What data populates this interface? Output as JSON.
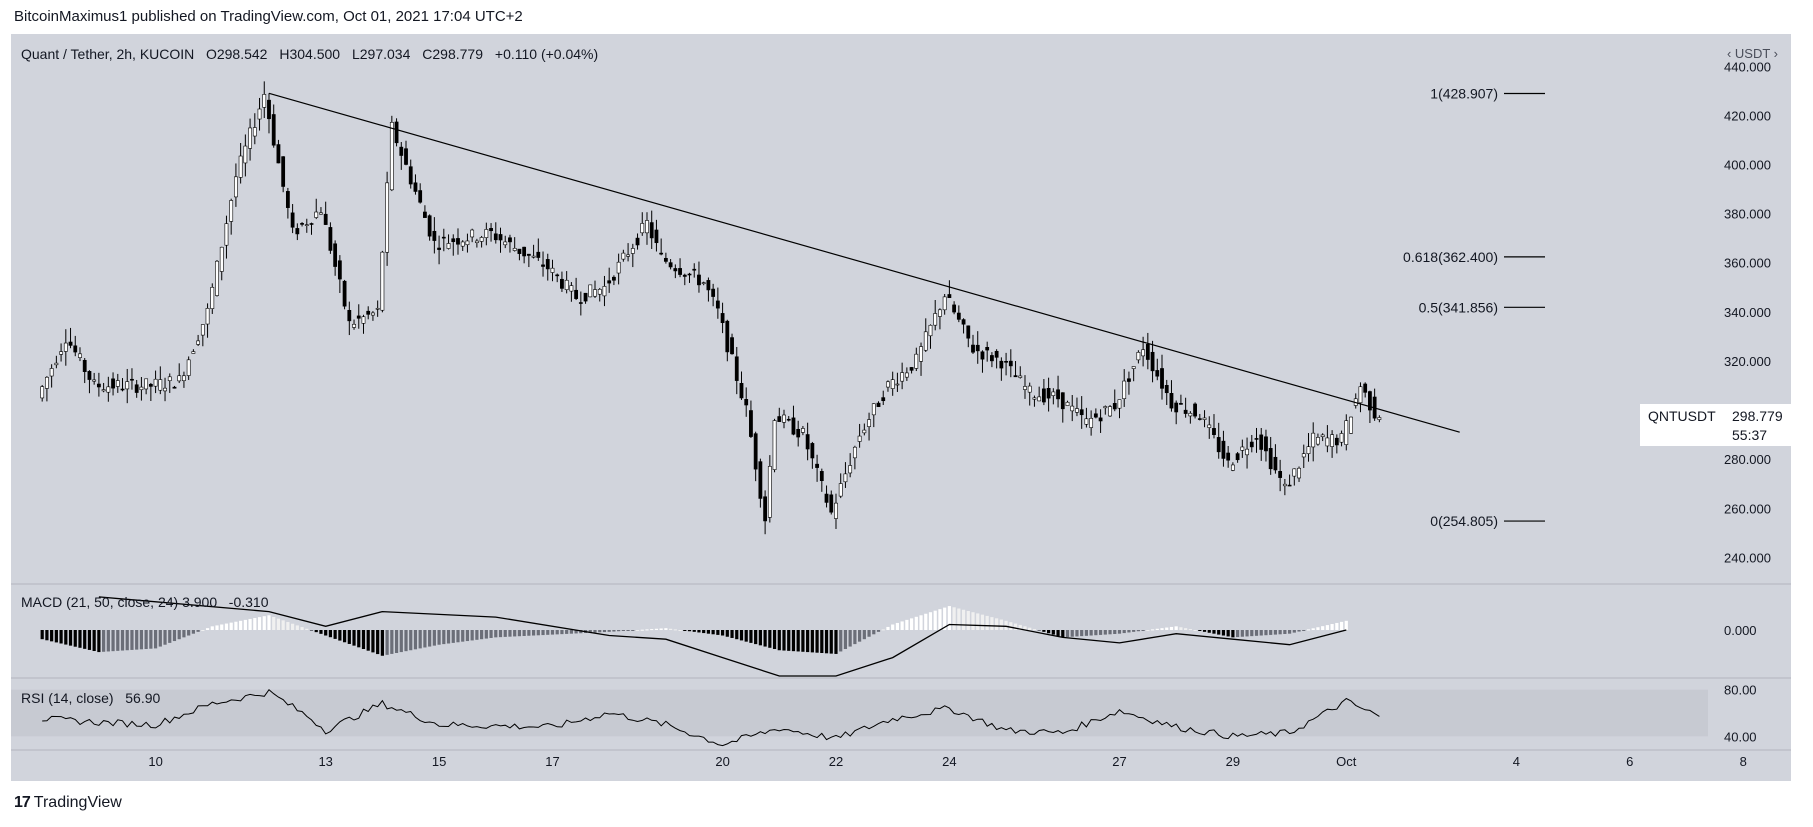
{
  "header": {
    "published_by": "BitcoinMaximus1 published on TradingView.com, Oct 01, 2021 17:04 UTC+2"
  },
  "legend": {
    "symbol": "Quant / Tether, 2h, KUCOIN",
    "open_label": "O",
    "open": "298.542",
    "high_label": "H",
    "high": "304.500",
    "low_label": "L",
    "low": "297.034",
    "close_label": "C",
    "close": "298.779",
    "change": "+0.110 (+0.04%)"
  },
  "axis": {
    "unit": "‹ USDT ›",
    "price_ticks": [
      "440.000",
      "420.000",
      "400.000",
      "380.000",
      "360.000",
      "340.000",
      "320.000",
      "280.000",
      "260.000",
      "240.000"
    ],
    "macd_ticks": [
      "0.000"
    ],
    "rsi_ticks": [
      "80.00",
      "40.00"
    ],
    "date_ticks": [
      "10",
      "13",
      "15",
      "17",
      "20",
      "22",
      "24",
      "27",
      "29",
      "Oct",
      "4",
      "6",
      "8"
    ]
  },
  "price_tag": {
    "symbol": "QNTUSDT",
    "price": "298.779",
    "countdown": "55:37"
  },
  "fib_levels": [
    {
      "label": "1(428.907)",
      "value": 428.907
    },
    {
      "label": "0.618(362.400)",
      "value": 362.4
    },
    {
      "label": "0.5(341.856)",
      "value": 341.856
    },
    {
      "label": "0(254.805)",
      "value": 254.805
    }
  ],
  "macd_legend": {
    "name": "MACD",
    "params": "(21, 50, close, 24)",
    "value1": "3.900",
    "value2": "-0.310"
  },
  "rsi_legend": {
    "name": "RSI",
    "params": "(14, close)",
    "value": "56.90"
  },
  "footer": {
    "brand": "TradingView",
    "brand_mark": "17"
  },
  "colors": {
    "background": "#d1d4dc",
    "candle": "#000000",
    "hist_strong": "#000000",
    "hist_weak": "#ffffff"
  },
  "chart_data": [
    {
      "type": "line",
      "subtype": "candlestick",
      "title": "Quant / Tether, 2h, KUCOIN",
      "x_ticks": [
        "10",
        "13",
        "15",
        "17",
        "20",
        "22",
        "24",
        "27",
        "29",
        "Oct",
        "4",
        "6",
        "8"
      ],
      "ylim": [
        230,
        445
      ],
      "x_start": "2021-09-08",
      "price_path": [
        {
          "date": "2021-09-08",
          "price": 305
        },
        {
          "date": "2021-09-08T12:00",
          "price": 330
        },
        {
          "date": "2021-09-09",
          "price": 310
        },
        {
          "date": "2021-09-10",
          "price": 310
        },
        {
          "date": "2021-09-10T12:00",
          "price": 312
        },
        {
          "date": "2021-09-11",
          "price": 340
        },
        {
          "date": "2021-09-11T12:00",
          "price": 395
        },
        {
          "date": "2021-09-12",
          "price": 428.9
        },
        {
          "date": "2021-09-12T12:00",
          "price": 372
        },
        {
          "date": "2021-09-13",
          "price": 382
        },
        {
          "date": "2021-09-13T12:00",
          "price": 335
        },
        {
          "date": "2021-09-14",
          "price": 340
        },
        {
          "date": "2021-09-14T06:00",
          "price": 415
        },
        {
          "date": "2021-09-15",
          "price": 368
        },
        {
          "date": "2021-09-16",
          "price": 372
        },
        {
          "date": "2021-09-17",
          "price": 358
        },
        {
          "date": "2021-09-17T12:00",
          "price": 346
        },
        {
          "date": "2021-09-18",
          "price": 350
        },
        {
          "date": "2021-09-18T18:00",
          "price": 376
        },
        {
          "date": "2021-09-19",
          "price": 362
        },
        {
          "date": "2021-09-19T18:00",
          "price": 352
        },
        {
          "date": "2021-09-20",
          "price": 340
        },
        {
          "date": "2021-09-20T12:00",
          "price": 300
        },
        {
          "date": "2021-09-20T20:00",
          "price": 256
        },
        {
          "date": "2021-09-21",
          "price": 298
        },
        {
          "date": "2021-09-21T12:00",
          "price": 290
        },
        {
          "date": "2021-09-22",
          "price": 258
        },
        {
          "date": "2021-09-22T12:00",
          "price": 290
        },
        {
          "date": "2021-09-23",
          "price": 310
        },
        {
          "date": "2021-09-23T12:00",
          "price": 320
        },
        {
          "date": "2021-09-24",
          "price": 347
        },
        {
          "date": "2021-09-24T12:00",
          "price": 325
        },
        {
          "date": "2021-09-25",
          "price": 320
        },
        {
          "date": "2021-09-25T12:00",
          "price": 307
        },
        {
          "date": "2021-09-26",
          "price": 305
        },
        {
          "date": "2021-09-26T12:00",
          "price": 295
        },
        {
          "date": "2021-09-27",
          "price": 302
        },
        {
          "date": "2021-09-27T12:00",
          "price": 326
        },
        {
          "date": "2021-09-28",
          "price": 303
        },
        {
          "date": "2021-09-28T12:00",
          "price": 298
        },
        {
          "date": "2021-09-29",
          "price": 278
        },
        {
          "date": "2021-09-29T12:00",
          "price": 290
        },
        {
          "date": "2021-09-30",
          "price": 268
        },
        {
          "date": "2021-09-30T12:00",
          "price": 288
        },
        {
          "date": "2021-10-01",
          "price": 288
        },
        {
          "date": "2021-10-01T08:00",
          "price": 310
        },
        {
          "date": "2021-10-01T14:00",
          "price": 298.779
        }
      ],
      "trendline": [
        {
          "date": "2021-09-12",
          "price": 429
        },
        {
          "date": "2021-10-03",
          "price": 291
        }
      ]
    },
    {
      "type": "bar",
      "title": "MACD (21, 50, close, 24)",
      "ylim": [
        -25,
        25
      ],
      "histogram_path": [
        {
          "date": "2021-09-08",
          "value": -5
        },
        {
          "date": "2021-09-09",
          "value": -12
        },
        {
          "date": "2021-09-10",
          "value": -10
        },
        {
          "date": "2021-09-11",
          "value": 2
        },
        {
          "date": "2021-09-12",
          "value": 8
        },
        {
          "date": "2021-09-13",
          "value": -3
        },
        {
          "date": "2021-09-14",
          "value": -14
        },
        {
          "date": "2021-09-15",
          "value": -8
        },
        {
          "date": "2021-09-16",
          "value": -4
        },
        {
          "date": "2021-09-18",
          "value": -1
        },
        {
          "date": "2021-09-19",
          "value": 1
        },
        {
          "date": "2021-09-20",
          "value": -3
        },
        {
          "date": "2021-09-21",
          "value": -11
        },
        {
          "date": "2021-09-22",
          "value": -13
        },
        {
          "date": "2021-09-23",
          "value": 3
        },
        {
          "date": "2021-09-24",
          "value": 13
        },
        {
          "date": "2021-09-25",
          "value": 5
        },
        {
          "date": "2021-09-26",
          "value": -4
        },
        {
          "date": "2021-09-27",
          "value": -2
        },
        {
          "date": "2021-09-28",
          "value": 2
        },
        {
          "date": "2021-09-29",
          "value": -4
        },
        {
          "date": "2021-09-30",
          "value": -2
        },
        {
          "date": "2021-10-01",
          "value": 5
        }
      ],
      "signal_path": [
        {
          "date": "2021-09-09",
          "value": 18
        },
        {
          "date": "2021-09-12",
          "value": 10
        },
        {
          "date": "2021-09-13",
          "value": 2
        },
        {
          "date": "2021-09-14",
          "value": 10
        },
        {
          "date": "2021-09-16",
          "value": 7
        },
        {
          "date": "2021-09-18",
          "value": -3
        },
        {
          "date": "2021-09-19",
          "value": -5
        },
        {
          "date": "2021-09-20",
          "value": -15
        },
        {
          "date": "2021-09-21",
          "value": -26
        },
        {
          "date": "2021-09-22",
          "value": -30
        },
        {
          "date": "2021-09-23",
          "value": -15
        },
        {
          "date": "2021-09-24",
          "value": 3
        },
        {
          "date": "2021-09-25",
          "value": 2
        },
        {
          "date": "2021-09-26",
          "value": -4
        },
        {
          "date": "2021-09-27",
          "value": -7
        },
        {
          "date": "2021-09-28",
          "value": -2
        },
        {
          "date": "2021-09-29",
          "value": -5
        },
        {
          "date": "2021-09-30",
          "value": -8
        },
        {
          "date": "2021-10-01",
          "value": 0
        }
      ]
    },
    {
      "type": "line",
      "title": "RSI (14, close)",
      "ylim": [
        30,
        90
      ],
      "bands": [
        40,
        80
      ],
      "values_path": [
        {
          "date": "2021-09-08",
          "value": 55
        },
        {
          "date": "2021-09-09",
          "value": 52
        },
        {
          "date": "2021-09-10",
          "value": 50
        },
        {
          "date": "2021-09-11",
          "value": 68
        },
        {
          "date": "2021-09-12",
          "value": 78
        },
        {
          "date": "2021-09-12T18:00",
          "value": 55
        },
        {
          "date": "2021-09-13",
          "value": 45
        },
        {
          "date": "2021-09-14",
          "value": 68
        },
        {
          "date": "2021-09-15",
          "value": 50
        },
        {
          "date": "2021-09-17",
          "value": 48
        },
        {
          "date": "2021-09-18",
          "value": 60
        },
        {
          "date": "2021-09-19",
          "value": 50
        },
        {
          "date": "2021-09-20",
          "value": 33
        },
        {
          "date": "2021-09-21",
          "value": 47
        },
        {
          "date": "2021-09-22",
          "value": 38
        },
        {
          "date": "2021-09-23",
          "value": 55
        },
        {
          "date": "2021-09-24",
          "value": 64
        },
        {
          "date": "2021-09-25",
          "value": 45
        },
        {
          "date": "2021-09-26",
          "value": 43
        },
        {
          "date": "2021-09-27",
          "value": 62
        },
        {
          "date": "2021-09-28",
          "value": 48
        },
        {
          "date": "2021-09-29",
          "value": 40
        },
        {
          "date": "2021-09-30",
          "value": 43
        },
        {
          "date": "2021-10-01",
          "value": 70
        },
        {
          "date": "2021-10-01T14:00",
          "value": 56.9
        }
      ]
    }
  ]
}
